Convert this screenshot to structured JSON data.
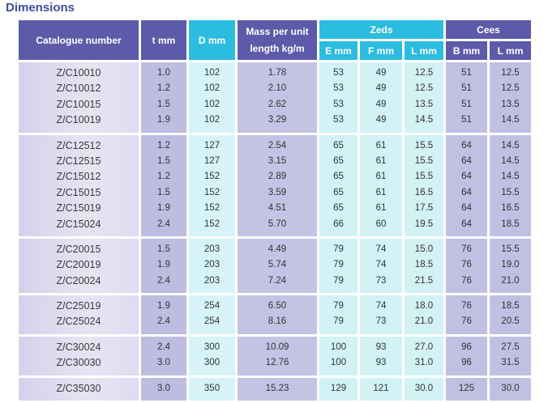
{
  "title": "Dimensions",
  "headers": {
    "catalogue": "Catalogue number",
    "t": "t mm",
    "d": "D mm",
    "mass": "Mass per unit length kg/m",
    "zeds": "Zeds",
    "cees": "Cees",
    "zeds_e": "E mm",
    "zeds_f": "F mm",
    "zeds_l": "L mm",
    "cees_b": "B mm",
    "cees_l": "L mm"
  },
  "groups": [
    [
      [
        "Z/C10010",
        "1.0",
        "102",
        "1.78",
        "53",
        "49",
        "12.5",
        "51",
        "12.5"
      ],
      [
        "Z/C10012",
        "1.2",
        "102",
        "2.10",
        "53",
        "49",
        "12.5",
        "51",
        "12.5"
      ],
      [
        "Z/C10015",
        "1.5",
        "102",
        "2.62",
        "53",
        "49",
        "13.5",
        "51",
        "13.5"
      ],
      [
        "Z/C10019",
        "1.9",
        "102",
        "3.29",
        "53",
        "49",
        "14.5",
        "51",
        "14.5"
      ]
    ],
    [
      [
        "Z/C12512",
        "1.2",
        "127",
        "2.54",
        "65",
        "61",
        "15.5",
        "64",
        "14.5"
      ],
      [
        "Z/C12515",
        "1.5",
        "127",
        "3.15",
        "65",
        "61",
        "15.5",
        "64",
        "14.5"
      ],
      [
        "Z/C15012",
        "1.2",
        "152",
        "2.89",
        "65",
        "61",
        "15.5",
        "64",
        "14.5"
      ],
      [
        "Z/C15015",
        "1.5",
        "152",
        "3.59",
        "65",
        "61",
        "16.5",
        "64",
        "15.5"
      ],
      [
        "Z/C15019",
        "1.9",
        "152",
        "4.51",
        "65",
        "61",
        "17.5",
        "64",
        "16.5"
      ],
      [
        "Z/C15024",
        "2.4",
        "152",
        "5.70",
        "66",
        "60",
        "19.5",
        "64",
        "18.5"
      ]
    ],
    [
      [
        "Z/C20015",
        "1.5",
        "203",
        "4.49",
        "79",
        "74",
        "15.0",
        "76",
        "15.5"
      ],
      [
        "Z/C20019",
        "1.9",
        "203",
        "5.74",
        "79",
        "74",
        "18.5",
        "76",
        "19.0"
      ],
      [
        "Z/C20024",
        "2.4",
        "203",
        "7.24",
        "79",
        "73",
        "21.5",
        "76",
        "21.0"
      ]
    ],
    [
      [
        "Z/C25019",
        "1.9",
        "254",
        "6.50",
        "79",
        "74",
        "18.0",
        "76",
        "18.5"
      ],
      [
        "Z/C25024",
        "2.4",
        "254",
        "8.16",
        "79",
        "73",
        "21.0",
        "76",
        "20.5"
      ]
    ],
    [
      [
        "Z/C30024",
        "2.4",
        "300",
        "10.09",
        "100",
        "93",
        "27.0",
        "96",
        "27.5"
      ],
      [
        "Z/C30030",
        "3.0",
        "300",
        "12.76",
        "100",
        "93",
        "31.0",
        "96",
        "31.5"
      ]
    ],
    [
      [
        "Z/C35030",
        "3.0",
        "350",
        "15.23",
        "129",
        "121",
        "30.0",
        "125",
        "30.0"
      ]
    ]
  ]
}
